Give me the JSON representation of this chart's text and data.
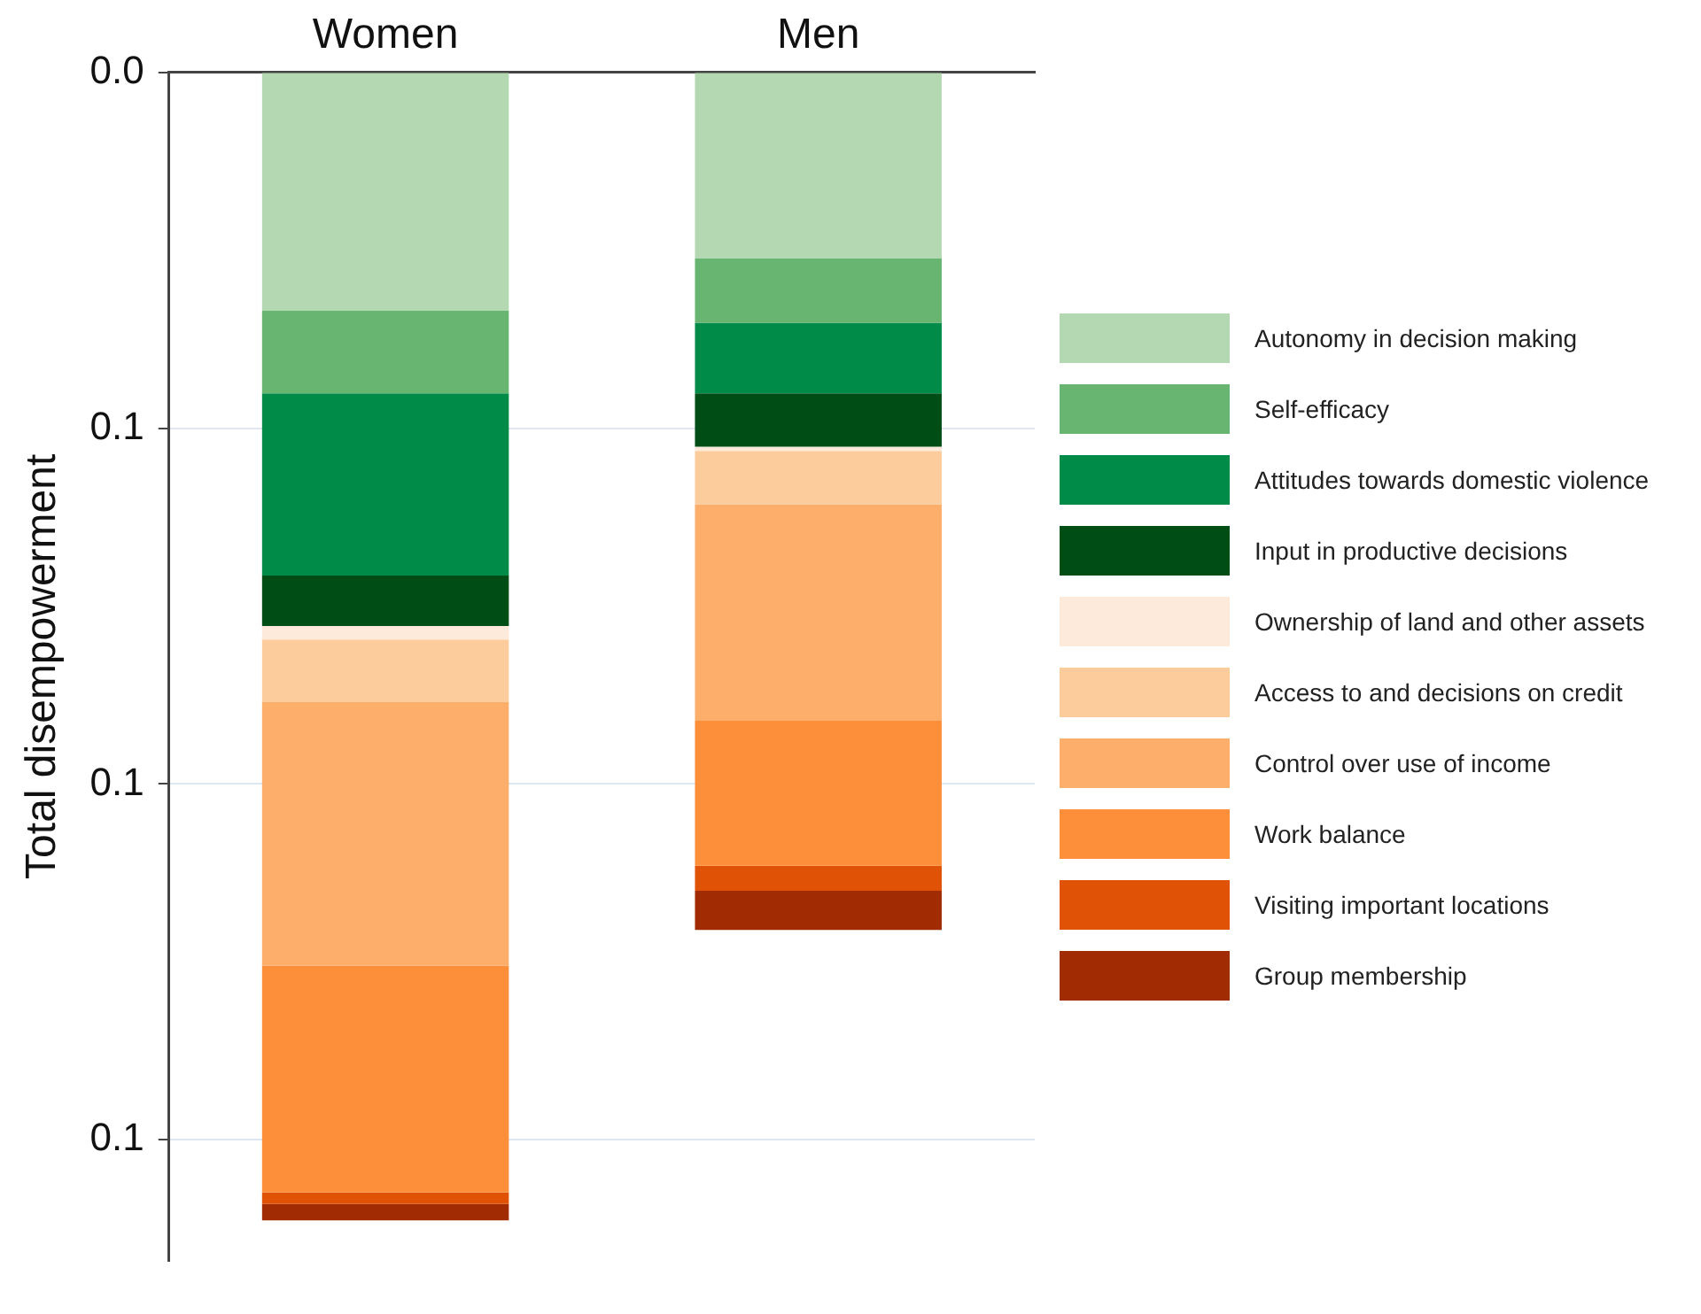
{
  "chart_data": {
    "type": "bar",
    "stacked": true,
    "ylabel": "Total disempowerment",
    "categories": [
      "Women",
      "Men"
    ],
    "ylim": [
      0.167,
      0
    ],
    "yticks": [
      {
        "value": 0,
        "label": "0.0"
      },
      {
        "value": 0.05,
        "label": "0.1"
      },
      {
        "value": 0.1,
        "label": "0.1"
      },
      {
        "value": 0.15,
        "label": "0.1"
      }
    ],
    "grid": "y",
    "legend": "right",
    "series": [
      {
        "name": "Autonomy in decision making",
        "color": "#b4d9b2",
        "values": [
          0.0335,
          0.0261
        ]
      },
      {
        "name": "Self-efficacy",
        "color": "#68b571",
        "values": [
          0.0116,
          0.0091
        ]
      },
      {
        "name": "Attitudes towards domestic violence",
        "color": "#008c48",
        "values": [
          0.0256,
          0.0099
        ]
      },
      {
        "name": "Input in productive decisions",
        "color": "#004d16",
        "values": [
          0.0071,
          0.0075
        ]
      },
      {
        "name": "Ownership of land and other assets",
        "color": "#feeadb",
        "values": [
          0.0019,
          0.0006
        ]
      },
      {
        "name": "Access to and decisions on credit",
        "color": "#fdcc9d",
        "values": [
          0.0088,
          0.0075
        ]
      },
      {
        "name": "Control over use of income",
        "color": "#fdae6b",
        "values": [
          0.037,
          0.0304
        ]
      },
      {
        "name": "Work balance",
        "color": "#fd8f3b",
        "values": [
          0.0319,
          0.0204
        ]
      },
      {
        "name": "Visiting important locations",
        "color": "#e05206",
        "values": [
          0.0016,
          0.0035
        ]
      },
      {
        "name": "Group membership",
        "color": "#a12b03",
        "values": [
          0.0023,
          0.0055
        ]
      }
    ]
  }
}
